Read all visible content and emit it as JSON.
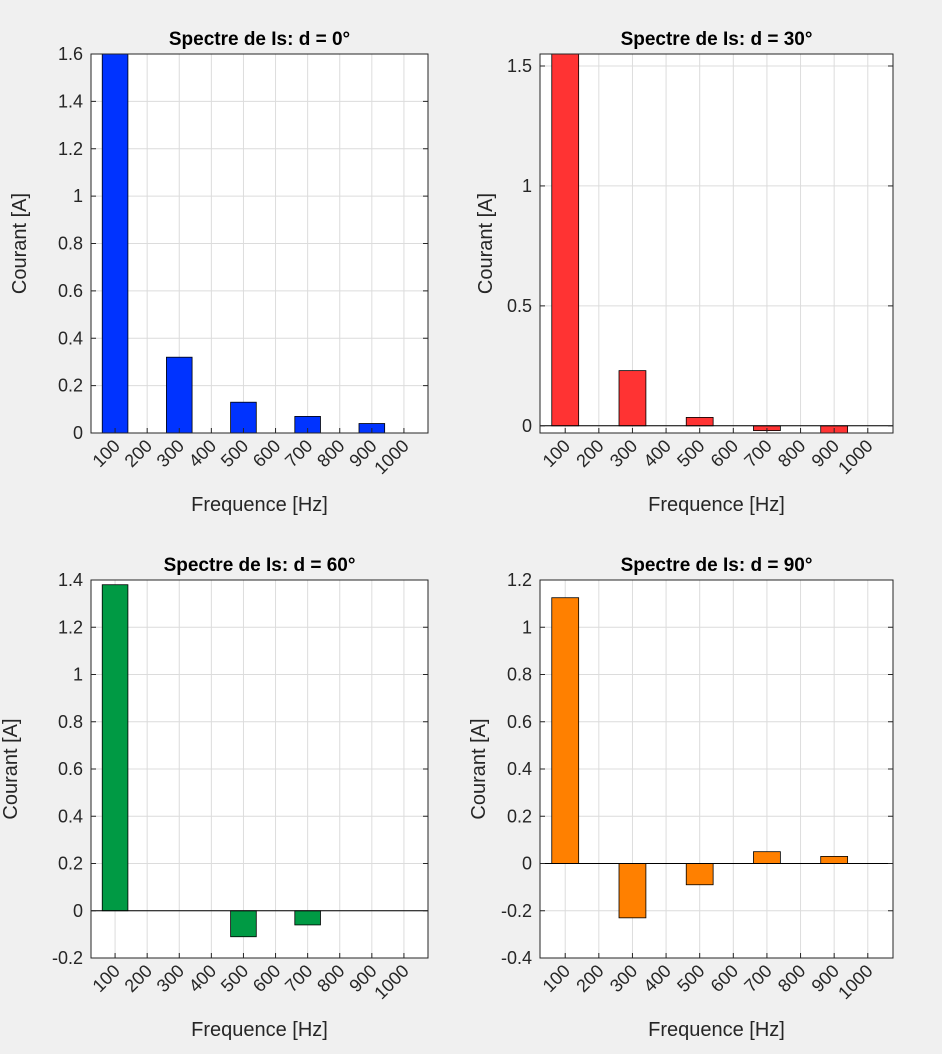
{
  "chart_data": [
    {
      "type": "bar",
      "title": "Spectre de Is: d = 0°",
      "xlabel": "Frequence [Hz]",
      "ylabel": "Courant [A]",
      "categories": [
        "100",
        "200",
        "300",
        "400",
        "500",
        "600",
        "700",
        "800",
        "900",
        "1000"
      ],
      "values": [
        1.6,
        0,
        0.32,
        0,
        0.13,
        0,
        0.07,
        0,
        0.04,
        0
      ],
      "ylim": [
        0,
        1.6
      ],
      "yticks": [
        0,
        0.2,
        0.4,
        0.6,
        0.8,
        1,
        1.2,
        1.4,
        1.6
      ],
      "ytick_labels": [
        "0",
        "0.2",
        "0.4",
        "0.6",
        "0.8",
        "1",
        "1.2",
        "1.4",
        "1.6"
      ],
      "color": "#0033ff",
      "grid": true
    },
    {
      "type": "bar",
      "title": "Spectre de Is: d = 30°",
      "xlabel": "Frequence [Hz]",
      "ylabel": "Courant [A]",
      "categories": [
        "100",
        "200",
        "300",
        "400",
        "500",
        "600",
        "700",
        "800",
        "900",
        "1000"
      ],
      "values": [
        1.55,
        0,
        0.23,
        0,
        0.035,
        0,
        -0.02,
        0,
        -0.03,
        0
      ],
      "ylim": [
        -0.03,
        1.55
      ],
      "yticks": [
        0,
        0.5,
        1,
        1.5
      ],
      "ytick_labels": [
        "0",
        "0.5",
        "1",
        "1.5"
      ],
      "color": "#ff3333",
      "grid": true
    },
    {
      "type": "bar",
      "title": "Spectre de Is: d = 60°",
      "xlabel": "Frequence [Hz]",
      "ylabel": "Courant [A]",
      "categories": [
        "100",
        "200",
        "300",
        "400",
        "500",
        "600",
        "700",
        "800",
        "900",
        "1000"
      ],
      "values": [
        1.38,
        0,
        0,
        0,
        -0.11,
        0,
        -0.06,
        0,
        0,
        0
      ],
      "ylim": [
        -0.2,
        1.4
      ],
      "yticks": [
        -0.2,
        0,
        0.2,
        0.4,
        0.6,
        0.8,
        1,
        1.2,
        1.4
      ],
      "ytick_labels": [
        "-0.2",
        "0",
        "0.2",
        "0.4",
        "0.6",
        "0.8",
        "1",
        "1.2",
        "1.4"
      ],
      "color": "#009a44",
      "grid": true
    },
    {
      "type": "bar",
      "title": "Spectre de Is: d = 90°",
      "xlabel": "Frequence [Hz]",
      "ylabel": "Courant [A]",
      "categories": [
        "100",
        "200",
        "300",
        "400",
        "500",
        "600",
        "700",
        "800",
        "900",
        "1000"
      ],
      "values": [
        1.125,
        0,
        -0.23,
        0,
        -0.09,
        0,
        0.05,
        0,
        0.03,
        0
      ],
      "ylim": [
        -0.4,
        1.2
      ],
      "yticks": [
        -0.4,
        -0.2,
        0,
        0.2,
        0.4,
        0.6,
        0.8,
        1,
        1.2
      ],
      "ytick_labels": [
        "-0.4",
        "-0.2",
        "0",
        "0.2",
        "0.4",
        "0.6",
        "0.8",
        "1",
        "1.2"
      ],
      "color": "#ff8000",
      "grid": true
    }
  ]
}
